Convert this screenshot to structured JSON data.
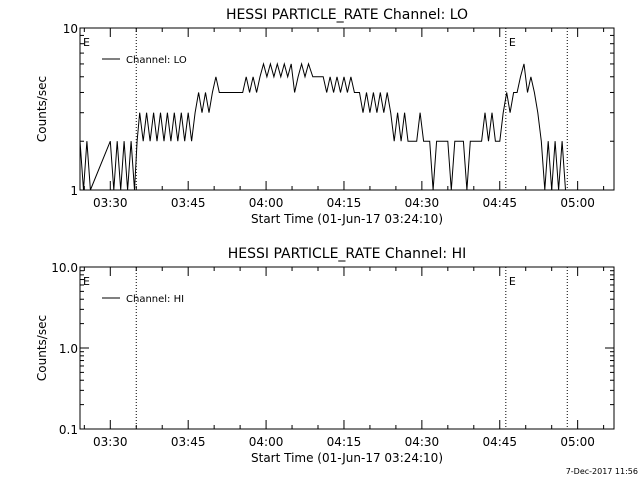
{
  "stamp": "7-Dec-2017 11:56",
  "chart_data": [
    {
      "type": "line",
      "title": "HESSI PARTICLE_RATE Channel: LO",
      "xlabel": "Start Time (01-Jun-17 03:24:10)",
      "ylabel": "Counts/sec",
      "yscale": "log",
      "ylim": [
        1,
        10
      ],
      "yticks": [
        1,
        10
      ],
      "ytick_labels": [
        "1",
        "10"
      ],
      "xlim": [
        "03:24:10",
        "05:07:00"
      ],
      "xticks": [
        "03:30",
        "03:45",
        "04:00",
        "04:15",
        "04:30",
        "04:45",
        "05:00"
      ],
      "event_marker_label": "E",
      "event_lines": [
        "03:35:00",
        "04:46:10",
        "04:58:00"
      ],
      "legend": {
        "placement": "top-left",
        "entries": [
          "Channel: LO"
        ]
      },
      "series": [
        {
          "name": "Channel: LO",
          "points": [
            [
              "03:24:10",
              2
            ],
            [
              "03:24:50",
              1
            ],
            [
              "03:25:30",
              2
            ],
            [
              "03:26:10",
              1
            ],
            [
              "03:30:00",
              2
            ],
            [
              "03:30:40",
              1
            ],
            [
              "03:31:20",
              2
            ],
            [
              "03:32:00",
              1
            ],
            [
              "03:32:40",
              2
            ],
            [
              "03:33:20",
              1
            ],
            [
              "03:34:00",
              2
            ],
            [
              "03:34:40",
              1
            ],
            [
              "03:35:10",
              2
            ],
            [
              "03:35:40",
              3
            ],
            [
              "03:36:20",
              2
            ],
            [
              "03:37:00",
              3
            ],
            [
              "03:37:40",
              2
            ],
            [
              "03:38:20",
              3
            ],
            [
              "03:39:00",
              2
            ],
            [
              "03:39:40",
              3
            ],
            [
              "03:40:20",
              2
            ],
            [
              "03:41:00",
              3
            ],
            [
              "03:41:40",
              2
            ],
            [
              "03:42:20",
              3
            ],
            [
              "03:43:00",
              2
            ],
            [
              "03:43:40",
              3
            ],
            [
              "03:44:20",
              2
            ],
            [
              "03:45:00",
              3
            ],
            [
              "03:45:40",
              2
            ],
            [
              "03:46:20",
              3
            ],
            [
              "03:47:00",
              4
            ],
            [
              "03:47:40",
              3
            ],
            [
              "03:48:20",
              4
            ],
            [
              "03:49:00",
              3
            ],
            [
              "03:49:40",
              4
            ],
            [
              "03:50:20",
              5
            ],
            [
              "03:51:00",
              4
            ],
            [
              "03:52:30",
              4
            ],
            [
              "03:54:00",
              4
            ],
            [
              "03:55:30",
              4
            ],
            [
              "03:56:10",
              5
            ],
            [
              "03:56:50",
              4
            ],
            [
              "03:57:30",
              5
            ],
            [
              "03:58:10",
              4
            ],
            [
              "03:58:50",
              5
            ],
            [
              "03:59:30",
              6
            ],
            [
              "04:00:10",
              5
            ],
            [
              "04:00:50",
              6
            ],
            [
              "04:01:30",
              5
            ],
            [
              "04:02:10",
              6
            ],
            [
              "04:02:50",
              5
            ],
            [
              "04:03:30",
              6
            ],
            [
              "04:04:10",
              5
            ],
            [
              "04:04:50",
              6
            ],
            [
              "04:05:30",
              4
            ],
            [
              "04:06:10",
              5
            ],
            [
              "04:06:50",
              6
            ],
            [
              "04:07:30",
              5
            ],
            [
              "04:08:10",
              6
            ],
            [
              "04:09:00",
              5
            ],
            [
              "04:11:00",
              5
            ],
            [
              "04:11:40",
              4
            ],
            [
              "04:12:20",
              5
            ],
            [
              "04:13:00",
              4
            ],
            [
              "04:13:40",
              5
            ],
            [
              "04:14:20",
              4
            ],
            [
              "04:15:00",
              5
            ],
            [
              "04:15:40",
              4
            ],
            [
              "04:16:20",
              5
            ],
            [
              "04:17:00",
              4
            ],
            [
              "04:18:00",
              4
            ],
            [
              "04:18:40",
              3
            ],
            [
              "04:19:20",
              4
            ],
            [
              "04:20:00",
              3
            ],
            [
              "04:20:40",
              4
            ],
            [
              "04:21:20",
              3
            ],
            [
              "04:22:00",
              4
            ],
            [
              "04:22:40",
              3
            ],
            [
              "04:23:20",
              4
            ],
            [
              "04:24:00",
              3
            ],
            [
              "04:24:40",
              2
            ],
            [
              "04:25:20",
              3
            ],
            [
              "04:26:00",
              2
            ],
            [
              "04:26:40",
              3
            ],
            [
              "04:27:20",
              2
            ],
            [
              "04:29:00",
              2
            ],
            [
              "04:29:40",
              3
            ],
            [
              "04:30:20",
              2
            ],
            [
              "04:31:30",
              2
            ],
            [
              "04:32:10",
              1
            ],
            [
              "04:32:50",
              2
            ],
            [
              "04:35:00",
              2
            ],
            [
              "04:35:40",
              1
            ],
            [
              "04:36:20",
              2
            ],
            [
              "04:38:00",
              2
            ],
            [
              "04:38:40",
              1
            ],
            [
              "04:39:20",
              2
            ],
            [
              "04:41:30",
              2
            ],
            [
              "04:42:10",
              3
            ],
            [
              "04:42:50",
              2
            ],
            [
              "04:43:30",
              3
            ],
            [
              "04:44:10",
              2
            ],
            [
              "04:45:00",
              2
            ],
            [
              "04:45:40",
              3
            ],
            [
              "04:46:20",
              4
            ],
            [
              "04:47:00",
              3
            ],
            [
              "04:47:40",
              4
            ],
            [
              "04:48:20",
              4
            ],
            [
              "04:49:00",
              5
            ],
            [
              "04:49:40",
              6
            ],
            [
              "04:50:20",
              4
            ],
            [
              "04:51:00",
              5
            ],
            [
              "04:51:40",
              4
            ],
            [
              "04:52:20",
              3
            ],
            [
              "04:53:00",
              2
            ],
            [
              "04:53:40",
              1
            ],
            [
              "04:54:20",
              2
            ],
            [
              "04:55:00",
              1
            ],
            [
              "04:55:40",
              2
            ],
            [
              "04:56:20",
              1
            ],
            [
              "04:57:00",
              2
            ],
            [
              "04:57:40",
              1
            ]
          ]
        }
      ]
    },
    {
      "type": "line",
      "title": "HESSI PARTICLE_RATE Channel: HI",
      "xlabel": "Start Time (01-Jun-17 03:24:10)",
      "ylabel": "Counts/sec",
      "yscale": "log",
      "ylim": [
        0.1,
        10
      ],
      "yticks": [
        0.1,
        1,
        10
      ],
      "ytick_labels": [
        "0.1",
        "1.0",
        "10.0"
      ],
      "xlim": [
        "03:24:10",
        "05:07:00"
      ],
      "xticks": [
        "03:30",
        "03:45",
        "04:00",
        "04:15",
        "04:30",
        "04:45",
        "05:00"
      ],
      "event_marker_label": "E",
      "event_lines": [
        "03:35:00",
        "04:46:10",
        "04:58:00"
      ],
      "legend": {
        "placement": "top-left",
        "entries": [
          "Channel: HI"
        ]
      },
      "series": [
        {
          "name": "Channel: HI",
          "points": []
        }
      ]
    }
  ]
}
